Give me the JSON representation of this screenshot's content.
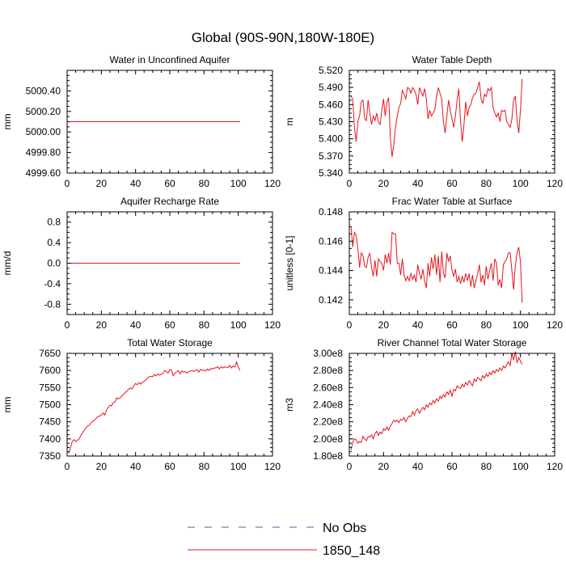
{
  "figure": {
    "title": "Global (90S-90N,180W-180E)",
    "legend": {
      "placement": "bottom-center",
      "entries": [
        {
          "label": "No Obs",
          "color": "#5a5aa8",
          "dash": true
        },
        {
          "label": "1850_148",
          "color": "#e8141e",
          "dash": false
        }
      ]
    }
  },
  "chart_data": [
    {
      "type": "line",
      "title": "Water in Unconfined Aquifer",
      "ylabel": "mm",
      "xlim": [
        0,
        120
      ],
      "xticks": [
        0,
        20,
        40,
        60,
        80,
        100,
        120
      ],
      "ylim": [
        4999.6,
        5000.6
      ],
      "yticks": [
        4999.6,
        4999.8,
        5000.0,
        5000.2,
        5000.4
      ],
      "ytick_labels": [
        "4999.60",
        "4999.80",
        "5000.00",
        "5000.20",
        "5000.40"
      ],
      "series": [
        {
          "name": "1850_148",
          "color": "#e8141e",
          "x": [
            1,
            101
          ],
          "y": [
            5000.1,
            5000.1
          ]
        }
      ]
    },
    {
      "type": "line",
      "title": "Water Table Depth",
      "ylabel": "m",
      "xlim": [
        0,
        120
      ],
      "xticks": [
        0,
        20,
        40,
        60,
        80,
        100,
        120
      ],
      "ylim": [
        5.34,
        5.52
      ],
      "yticks": [
        5.34,
        5.37,
        5.4,
        5.43,
        5.46,
        5.49,
        5.52
      ],
      "ytick_labels": [
        "5.340",
        "5.370",
        "5.400",
        "5.430",
        "5.460",
        "5.490",
        "5.520"
      ],
      "series": [
        {
          "name": "1850_148",
          "color": "#e8141e",
          "x": [
            1,
            2,
            3,
            4,
            5,
            6,
            7,
            8,
            9,
            10,
            11,
            12,
            13,
            14,
            15,
            16,
            17,
            18,
            19,
            20,
            21,
            22,
            23,
            24,
            25,
            26,
            27,
            28,
            29,
            30,
            31,
            32,
            33,
            34,
            35,
            36,
            37,
            38,
            39,
            40,
            41,
            42,
            43,
            44,
            45,
            46,
            47,
            48,
            49,
            50,
            51,
            52,
            53,
            54,
            55,
            56,
            57,
            58,
            59,
            60,
            61,
            62,
            63,
            64,
            65,
            66,
            67,
            68,
            69,
            70,
            71,
            72,
            73,
            74,
            75,
            76,
            77,
            78,
            79,
            80,
            81,
            82,
            83,
            84,
            85,
            86,
            87,
            88,
            89,
            90,
            91,
            92,
            93,
            94,
            95,
            96,
            97,
            98,
            99,
            100,
            101
          ],
          "y": [
            5.475,
            5.47,
            5.42,
            5.395,
            5.43,
            5.44,
            5.465,
            5.468,
            5.435,
            5.432,
            5.468,
            5.445,
            5.425,
            5.44,
            5.432,
            5.445,
            5.43,
            5.425,
            5.45,
            5.47,
            5.44,
            5.465,
            5.472,
            5.4,
            5.368,
            5.39,
            5.42,
            5.44,
            5.455,
            5.462,
            5.485,
            5.478,
            5.47,
            5.49,
            5.488,
            5.48,
            5.49,
            5.485,
            5.478,
            5.46,
            5.49,
            5.482,
            5.475,
            5.488,
            5.47,
            5.435,
            5.45,
            5.44,
            5.445,
            5.452,
            5.475,
            5.49,
            5.48,
            5.47,
            5.43,
            5.41,
            5.44,
            5.468,
            5.45,
            5.435,
            5.42,
            5.44,
            5.468,
            5.488,
            5.43,
            5.395,
            5.425,
            5.465,
            5.44,
            5.455,
            5.46,
            5.472,
            5.478,
            5.48,
            5.49,
            5.5,
            5.47,
            5.462,
            5.478,
            5.474,
            5.488,
            5.484,
            5.49,
            5.455,
            5.445,
            5.438,
            5.445,
            5.43,
            5.45,
            5.448,
            5.45,
            5.43,
            5.425,
            5.42,
            5.435,
            5.468,
            5.475,
            5.432,
            5.41,
            5.45,
            5.505
          ]
        }
      ]
    },
    {
      "type": "line",
      "title": "Aquifer Recharge Rate",
      "ylabel": "mm/d",
      "xlim": [
        0,
        120
      ],
      "xticks": [
        0,
        20,
        40,
        60,
        80,
        100,
        120
      ],
      "ylim": [
        -1.0,
        1.0
      ],
      "yticks": [
        -0.8,
        -0.4,
        0.0,
        0.4,
        0.8
      ],
      "ytick_labels": [
        "-0.8",
        "-0.4",
        "0.0",
        "0.4",
        "0.8"
      ],
      "series": [
        {
          "name": "1850_148",
          "color": "#e8141e",
          "x": [
            1,
            101
          ],
          "y": [
            0.0,
            0.0
          ]
        }
      ]
    },
    {
      "type": "line",
      "title": "Frac Water Table at Surface",
      "ylabel": "unitless [0-1]",
      "xlim": [
        0,
        120
      ],
      "xticks": [
        0,
        20,
        40,
        60,
        80,
        100,
        120
      ],
      "ylim": [
        0.141,
        0.148
      ],
      "yticks": [
        0.142,
        0.144,
        0.146,
        0.148
      ],
      "ytick_labels": [
        "0.142",
        "0.144",
        "0.146",
        "0.148"
      ],
      "series": [
        {
          "name": "1850_148",
          "color": "#e8141e",
          "x": [
            1,
            2,
            3,
            4,
            5,
            6,
            7,
            8,
            9,
            10,
            11,
            12,
            13,
            14,
            15,
            16,
            17,
            18,
            19,
            20,
            21,
            22,
            23,
            24,
            25,
            26,
            27,
            28,
            29,
            30,
            31,
            32,
            33,
            34,
            35,
            36,
            37,
            38,
            39,
            40,
            41,
            42,
            43,
            44,
            45,
            46,
            47,
            48,
            49,
            50,
            51,
            52,
            53,
            54,
            55,
            56,
            57,
            58,
            59,
            60,
            61,
            62,
            63,
            64,
            65,
            66,
            67,
            68,
            69,
            70,
            71,
            72,
            73,
            74,
            75,
            76,
            77,
            78,
            79,
            80,
            81,
            82,
            83,
            84,
            85,
            86,
            87,
            88,
            89,
            90,
            91,
            92,
            93,
            94,
            95,
            96,
            97,
            98,
            99,
            100,
            101
          ],
          "y": [
            0.147,
            0.1456,
            0.1466,
            0.1464,
            0.1455,
            0.1442,
            0.1452,
            0.145,
            0.1443,
            0.1442,
            0.1449,
            0.1452,
            0.1442,
            0.1436,
            0.1447,
            0.1436,
            0.1448,
            0.1446,
            0.1445,
            0.144,
            0.1451,
            0.1445,
            0.1452,
            0.1444,
            0.1466,
            0.1465,
            0.1465,
            0.1445,
            0.1445,
            0.1437,
            0.1448,
            0.1437,
            0.1433,
            0.1436,
            0.1433,
            0.1438,
            0.1434,
            0.1437,
            0.1432,
            0.1444,
            0.1438,
            0.1434,
            0.1441,
            0.1433,
            0.1428,
            0.1445,
            0.1436,
            0.1449,
            0.1441,
            0.1451,
            0.1437,
            0.145,
            0.1432,
            0.1453,
            0.1438,
            0.1435,
            0.1452,
            0.1446,
            0.145,
            0.144,
            0.1436,
            0.1441,
            0.1432,
            0.1436,
            0.1431,
            0.1436,
            0.1432,
            0.1438,
            0.1433,
            0.1438,
            0.1429,
            0.1437,
            0.1428,
            0.1433,
            0.1438,
            0.1444,
            0.1432,
            0.1437,
            0.143,
            0.1443,
            0.1434,
            0.144,
            0.1445,
            0.1433,
            0.1448,
            0.1445,
            0.143,
            0.1434,
            0.1428,
            0.1444,
            0.1446,
            0.1448,
            0.1452,
            0.1452,
            0.144,
            0.1427,
            0.1443,
            0.1452,
            0.1456,
            0.1446,
            0.1418
          ]
        }
      ]
    },
    {
      "type": "line",
      "title": "Total Water Storage",
      "ylabel": "mm",
      "xlim": [
        0,
        120
      ],
      "xticks": [
        0,
        20,
        40,
        60,
        80,
        100,
        120
      ],
      "ylim": [
        7350,
        7650
      ],
      "yticks": [
        7350,
        7400,
        7450,
        7500,
        7550,
        7600,
        7650
      ],
      "ytick_labels": [
        "7350",
        "7400",
        "7450",
        "7500",
        "7550",
        "7600",
        "7650"
      ],
      "series": [
        {
          "name": "1850_148",
          "color": "#e8141e",
          "x": [
            1,
            2,
            3,
            4,
            5,
            6,
            7,
            8,
            9,
            10,
            11,
            12,
            13,
            14,
            15,
            16,
            17,
            18,
            19,
            20,
            21,
            22,
            23,
            24,
            25,
            26,
            27,
            28,
            29,
            30,
            31,
            32,
            33,
            34,
            35,
            36,
            37,
            38,
            39,
            40,
            41,
            42,
            43,
            44,
            45,
            46,
            47,
            48,
            49,
            50,
            51,
            52,
            53,
            54,
            55,
            56,
            57,
            58,
            59,
            60,
            61,
            62,
            63,
            64,
            65,
            66,
            67,
            68,
            69,
            70,
            71,
            72,
            73,
            74,
            75,
            76,
            77,
            78,
            79,
            80,
            81,
            82,
            83,
            84,
            85,
            86,
            87,
            88,
            89,
            90,
            91,
            92,
            93,
            94,
            95,
            96,
            97,
            98,
            99,
            100,
            101
          ],
          "y": [
            7358,
            7375,
            7392,
            7398,
            7392,
            7396,
            7400,
            7410,
            7418,
            7425,
            7432,
            7438,
            7440,
            7447,
            7452,
            7455,
            7460,
            7466,
            7466,
            7470,
            7476,
            7470,
            7484,
            7492,
            7498,
            7497,
            7506,
            7508,
            7520,
            7517,
            7520,
            7526,
            7530,
            7536,
            7540,
            7545,
            7549,
            7546,
            7555,
            7562,
            7558,
            7565,
            7560,
            7566,
            7568,
            7572,
            7578,
            7582,
            7583,
            7582,
            7588,
            7584,
            7590,
            7586,
            7589,
            7591,
            7600,
            7597,
            7592,
            7603,
            7601,
            7585,
            7592,
            7596,
            7600,
            7590,
            7599,
            7595,
            7597,
            7592,
            7597,
            7598,
            7600,
            7597,
            7600,
            7602,
            7595,
            7603,
            7600,
            7601,
            7598,
            7604,
            7600,
            7606,
            7605,
            7607,
            7608,
            7611,
            7605,
            7611,
            7607,
            7610,
            7610,
            7608,
            7615,
            7607,
            7613,
            7610,
            7625,
            7610,
            7600
          ]
        }
      ]
    },
    {
      "type": "line",
      "title": "River Channel Total Water Storage",
      "ylabel": "m3",
      "xlim": [
        0,
        120
      ],
      "xticks": [
        0,
        20,
        40,
        60,
        80,
        100,
        120
      ],
      "ylim": [
        180000000.0,
        300000000.0
      ],
      "yticks": [
        180000000.0,
        200000000.0,
        220000000.0,
        240000000.0,
        260000000.0,
        280000000.0,
        300000000.0
      ],
      "ytick_labels": [
        "1.80e8",
        "2.00e8",
        "2.20e8",
        "2.40e8",
        "2.60e8",
        "2.80e8",
        "3.00e8"
      ],
      "series": [
        {
          "name": "1850_148",
          "color": "#e8141e",
          "x": [
            1,
            2,
            3,
            4,
            5,
            6,
            7,
            8,
            9,
            10,
            11,
            12,
            13,
            14,
            15,
            16,
            17,
            18,
            19,
            20,
            21,
            22,
            23,
            24,
            25,
            26,
            27,
            28,
            29,
            30,
            31,
            32,
            33,
            34,
            35,
            36,
            37,
            38,
            39,
            40,
            41,
            42,
            43,
            44,
            45,
            46,
            47,
            48,
            49,
            50,
            51,
            52,
            53,
            54,
            55,
            56,
            57,
            58,
            59,
            60,
            61,
            62,
            63,
            64,
            65,
            66,
            67,
            68,
            69,
            70,
            71,
            72,
            73,
            74,
            75,
            76,
            77,
            78,
            79,
            80,
            81,
            82,
            83,
            84,
            85,
            86,
            87,
            88,
            89,
            90,
            91,
            92,
            93,
            94,
            95,
            96,
            97,
            98,
            99,
            100,
            101
          ],
          "y": [
            187000000.0,
            196000000.0,
            200000000.0,
            199000000.0,
            195000000.0,
            197000000.0,
            196000000.0,
            203000000.0,
            200000000.0,
            198000000.0,
            203000000.0,
            202000000.0,
            205000000.0,
            200000000.0,
            206000000.0,
            209000000.0,
            204000000.0,
            208000000.0,
            206000000.0,
            212000000.0,
            210000000.0,
            214000000.0,
            210000000.0,
            215000000.0,
            218000000.0,
            222000000.0,
            220000000.0,
            222000000.0,
            219000000.0,
            223000000.0,
            222000000.0,
            225000000.0,
            220000000.0,
            224000000.0,
            227000000.0,
            226000000.0,
            232000000.0,
            228000000.0,
            233000000.0,
            235000000.0,
            230000000.0,
            234000000.0,
            237000000.0,
            234000000.0,
            240000000.0,
            237000000.0,
            242000000.0,
            240000000.0,
            245000000.0,
            242000000.0,
            247000000.0,
            244000000.0,
            250000000.0,
            247000000.0,
            252000000.0,
            249000000.0,
            255000000.0,
            252000000.0,
            257000000.0,
            250000000.0,
            258000000.0,
            256000000.0,
            262000000.0,
            260000000.0,
            259000000.0,
            264000000.0,
            261000000.0,
            266000000.0,
            263000000.0,
            268000000.0,
            265000000.0,
            262000000.0,
            270000000.0,
            267000000.0,
            272000000.0,
            270000000.0,
            268000000.0,
            274000000.0,
            271000000.0,
            276000000.0,
            273000000.0,
            278000000.0,
            275000000.0,
            280000000.0,
            277000000.0,
            281000000.0,
            279000000.0,
            283000000.0,
            280000000.0,
            285000000.0,
            283000000.0,
            287000000.0,
            290000000.0,
            286000000.0,
            300000000.0,
            292000000.0,
            302000000.0,
            289000000.0,
            295000000.0,
            291000000.0,
            287000000.0
          ]
        }
      ]
    }
  ]
}
